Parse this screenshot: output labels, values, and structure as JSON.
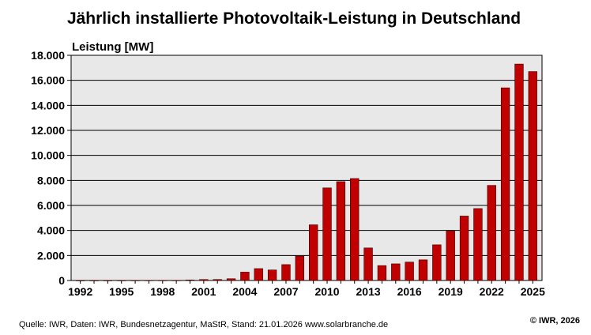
{
  "chart_data": {
    "type": "bar",
    "title": "Jährlich installierte Photovoltaik-Leistung in Deutschland",
    "ylabel": "Leistung [MW]",
    "xlabel": "",
    "ylim": [
      0,
      18000
    ],
    "yticks": [
      0,
      2000,
      4000,
      6000,
      8000,
      10000,
      12000,
      14000,
      16000,
      18000
    ],
    "ytick_labels": [
      "0",
      "2.000",
      "4.000",
      "6.000",
      "8.000",
      "10.000",
      "12.000",
      "14.000",
      "16.000",
      "18.000"
    ],
    "xtick_labels": [
      "1992",
      "1995",
      "1998",
      "2001",
      "2004",
      "2007",
      "2010",
      "2013",
      "2016",
      "2019",
      "2022",
      "2025"
    ],
    "grid": true,
    "bar_color": "#c00000",
    "plot_background": "#e8e8e8",
    "categories": [
      "1992",
      "1993",
      "1994",
      "1995",
      "1996",
      "1997",
      "1998",
      "1999",
      "2000",
      "2001",
      "2002",
      "2003",
      "2004",
      "2005",
      "2006",
      "2007",
      "2008",
      "2009",
      "2010",
      "2011",
      "2012",
      "2013",
      "2014",
      "2015",
      "2016",
      "2017",
      "2018",
      "2019",
      "2020",
      "2021",
      "2022",
      "2023",
      "2024",
      "2025"
    ],
    "values": [
      3,
      5,
      5,
      7,
      10,
      12,
      12,
      12,
      44,
      78,
      80,
      140,
      670,
      950,
      840,
      1270,
      1950,
      4450,
      7400,
      7900,
      8150,
      2600,
      1190,
      1330,
      1470,
      1650,
      2850,
      3950,
      5150,
      5750,
      7600,
      15400,
      17300,
      16700
    ]
  },
  "footer": {
    "source": "Quelle: IWR, Daten: IWR, Bundesnetzagentur, MaStR, Stand: 21.01.2026    www.solarbranche.de",
    "copyright": "© IWR, 2026"
  }
}
